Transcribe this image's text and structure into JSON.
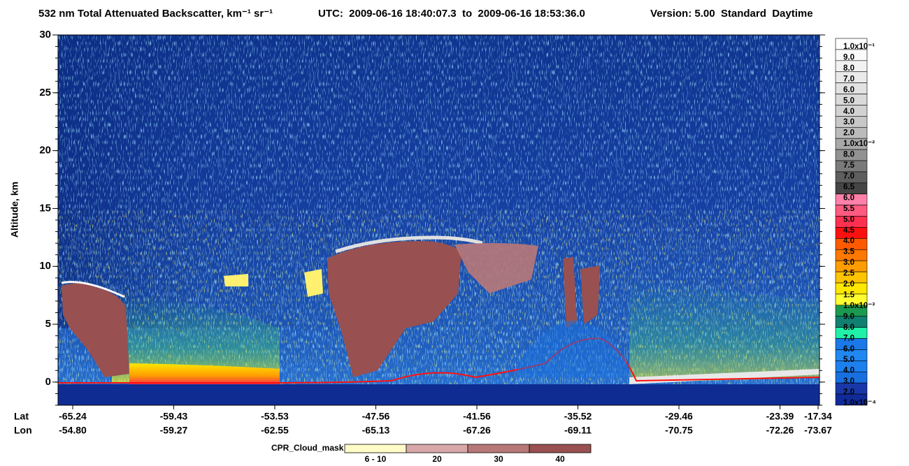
{
  "title": {
    "main": "532 nm Total Attenuated Backscatter, km⁻¹ sr⁻¹",
    "utc": "UTC:  2009-06-16 18:40:07.3  to  2009-06-16 18:53:36.0",
    "version": "Version: 5.00  Standard  Daytime"
  },
  "chart_data": {
    "type": "heatmap",
    "y_label": "Altitude, km",
    "ylim": [
      -2,
      30
    ],
    "yticks": [
      0,
      5,
      10,
      15,
      20,
      25,
      30
    ],
    "x_row_labels": [
      "Lat",
      "Lon"
    ],
    "lat": [
      "-65.24",
      "-59.43",
      "-53.53",
      "-47.56",
      "-41.56",
      "-35.52",
      "-29.46",
      "-23.39",
      "-17.34"
    ],
    "lon": [
      "-54.80",
      "-59.27",
      "-62.55",
      "-65.13",
      "-67.26",
      "-69.11",
      "-70.75",
      "-72.26",
      "-73.67"
    ],
    "colorbar": {
      "labels": [
        "1.0x10⁻¹",
        "9.0",
        "8.0",
        "7.0",
        "6.0",
        "5.0",
        "4.0",
        "3.0",
        "2.0",
        "1.0x10⁻²",
        "8.0",
        "7.5",
        "7.0",
        "6.5",
        "6.0",
        "5.5",
        "5.0",
        "4.5",
        "4.0",
        "3.5",
        "3.0",
        "2.5",
        "2.0",
        "1.5",
        "1.0x10⁻³",
        "9.0",
        "8.0",
        "7.0",
        "6.0",
        "5.0",
        "4.0",
        "3.0",
        "2.0",
        "1.0x10⁻⁴"
      ],
      "colors": [
        "#ffffff",
        "#fafafa",
        "#f2f2f2",
        "#eaeaea",
        "#e2e2e2",
        "#dadada",
        "#d2d2d2",
        "#c8c8c8",
        "#bbbbbb",
        "#a8a8a8",
        "#929292",
        "#7a7a7a",
        "#5e5e5e",
        "#454545",
        "#ff80a8",
        "#ff5a80",
        "#ff3050",
        "#ff1010",
        "#ff5a00",
        "#ff7800",
        "#ff9c00",
        "#ffc400",
        "#ffe800",
        "#ffff30",
        "#1a9a50",
        "#108070",
        "#20f0a8",
        "#1a78e8",
        "#2088f0",
        "#1c80ee",
        "#1870e0",
        "#1838a8",
        "#102a98"
      ]
    },
    "cpr_legend": {
      "title": "CPR_Cloud_mask",
      "labels": [
        "6 - 10",
        "20",
        "30",
        "40"
      ],
      "colors": [
        "#fffcc8",
        "#d8a8a8",
        "#b87878",
        "#985050"
      ]
    }
  }
}
